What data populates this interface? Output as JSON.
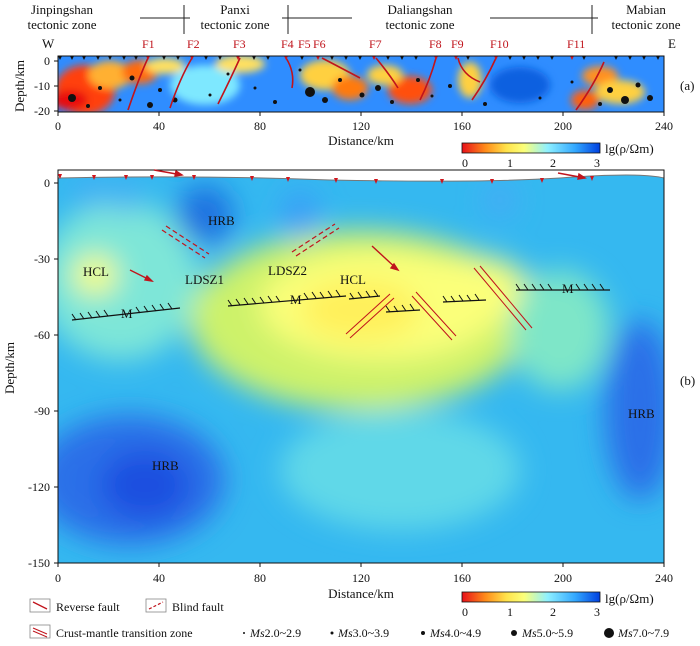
{
  "zones": [
    {
      "name": "Jinpingshan",
      "suffix": "tectonic zone"
    },
    {
      "name": "Panxi",
      "suffix": "tectonic zone"
    },
    {
      "name": "Daliangshan",
      "suffix": "tectonic zone"
    },
    {
      "name": "Mabian",
      "suffix": "tectonic zone"
    }
  ],
  "panel_a": {
    "direction_left": "W",
    "direction_right": "E",
    "label": "(a)",
    "ylabel": "Depth/km",
    "xlabel": "Distance/km",
    "yticks": [
      "0",
      "-10",
      "-20"
    ],
    "xticks": [
      "0",
      "40",
      "80",
      "120",
      "160",
      "200",
      "240"
    ],
    "faults": [
      "F1",
      "F2",
      "F3",
      "F4",
      "F5",
      "F6",
      "F7",
      "F8",
      "F9",
      "F10",
      "F11"
    ]
  },
  "panel_b": {
    "label": "(b)",
    "ylabel": "Depth/km",
    "xlabel": "Distance/km",
    "yticks": [
      "0",
      "-30",
      "-60",
      "-90",
      "-120",
      "-150"
    ],
    "xticks": [
      "0",
      "40",
      "80",
      "120",
      "160",
      "200",
      "240"
    ],
    "annotations": {
      "hrb": "HRB",
      "hcl": "HCL",
      "ldsz1": "LDSZ1",
      "ldsz2": "LDSZ2",
      "moho": "M"
    }
  },
  "colorbar": {
    "ticks": [
      "0",
      "1",
      "2",
      "3"
    ],
    "label": "lg(ρ/Ωm)",
    "colors": [
      "#e8101a",
      "#ff8c1a",
      "#ffe24a",
      "#fbff7a",
      "#8ef0ff",
      "#33a8ff",
      "#0040e0"
    ]
  },
  "legend": {
    "reverse_fault": "Reverse fault",
    "blind_fault": "Blind fault",
    "transition_zone": "Crust-mantle transition zone",
    "magnitudes": [
      {
        "ms": "Ms",
        "range": "2.0~2.9"
      },
      {
        "ms": "Ms",
        "range": "3.0~3.9"
      },
      {
        "ms": "Ms",
        "range": "4.0~4.9"
      },
      {
        "ms": "Ms",
        "range": "5.0~5.9"
      },
      {
        "ms": "Ms",
        "range": "7.0~7.9"
      }
    ]
  },
  "chart_data": [
    {
      "type": "heatmap",
      "panel": "a",
      "x_range_km": [
        0,
        240
      ],
      "depth_range_km": [
        -20,
        0
      ],
      "x_label": "Distance/km",
      "y_label": "Depth/km",
      "quantity": "lg(ρ/Ωm)",
      "value_range": [
        0,
        3
      ],
      "faults": [
        "F1",
        "F2",
        "F3",
        "F4",
        "F5",
        "F6",
        "F7",
        "F8",
        "F9",
        "F10",
        "F11"
      ]
    },
    {
      "type": "heatmap",
      "panel": "b",
      "x_range_km": [
        0,
        240
      ],
      "depth_range_km": [
        -150,
        0
      ],
      "x_label": "Distance/km",
      "y_label": "Depth/km",
      "quantity": "lg(ρ/Ωm)",
      "value_range": [
        0,
        3
      ],
      "features": [
        "HRB",
        "HCL",
        "LDSZ1",
        "LDSZ2",
        "M"
      ]
    }
  ]
}
